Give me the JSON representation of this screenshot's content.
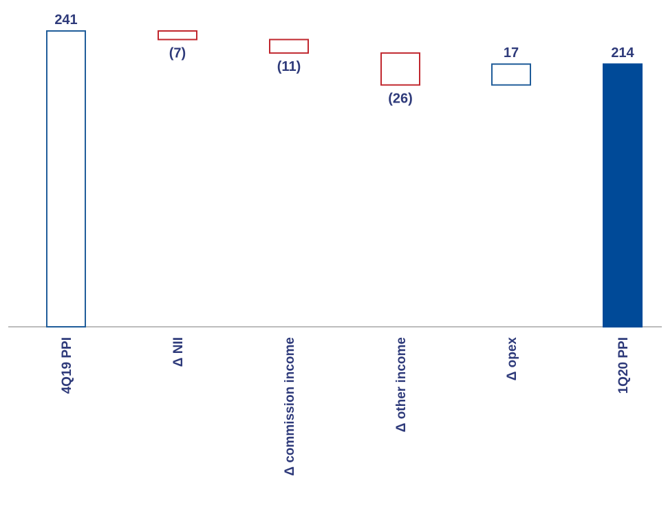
{
  "chart_data": {
    "type": "waterfall",
    "categories": [
      "4Q19 PPI",
      "Δ NII",
      "Δ commission income",
      "Δ other income",
      "Δ opex",
      "1Q20 PPI"
    ],
    "values": [
      241,
      -7,
      -11,
      -26,
      17,
      214
    ],
    "value_labels": [
      "241",
      "(7)",
      "(11)",
      "(26)",
      "17",
      "214"
    ],
    "kinds": [
      "start",
      "delta",
      "delta",
      "delta",
      "delta",
      "total"
    ],
    "ylim": [
      0,
      241
    ],
    "grid": false,
    "legend": "none",
    "colors": {
      "start_outline": "#1f5c99",
      "negative_outline": "#c0262d",
      "positive_outline": "#1f5c99",
      "total_fill": "#004a98",
      "label_text": "#2e3a7a",
      "axis": "#a6a6a6"
    }
  }
}
